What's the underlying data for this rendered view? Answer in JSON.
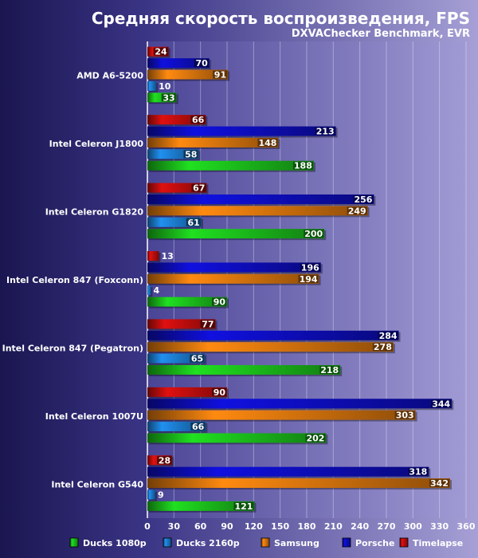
{
  "chart_data": {
    "type": "bar",
    "orientation": "horizontal",
    "title": "Средняя скорость воспроизведения, FPS",
    "subtitle": "DXVAChecker Benchmark, EVR",
    "categories": [
      "AMD A6-5200",
      "Intel Celeron J1800",
      "Intel Celeron G1820",
      "Intel Celeron 847 (Foxconn)",
      "Intel Celeron 847 (Pegatron)",
      "Intel Celeron 1007U",
      "Intel Celeron G540"
    ],
    "series": [
      {
        "name": "Timelapse",
        "color": "#e01010",
        "values": [
          24,
          66,
          67,
          13,
          77,
          90,
          28
        ]
      },
      {
        "name": "Porsche",
        "color": "#1010e0",
        "values": [
          70,
          213,
          256,
          196,
          284,
          344,
          318
        ]
      },
      {
        "name": "Samsung",
        "color": "#ff8a10",
        "values": [
          91,
          148,
          249,
          194,
          278,
          303,
          342
        ]
      },
      {
        "name": "Ducks 2160p",
        "color": "#2090f0",
        "values": [
          10,
          58,
          61,
          4,
          65,
          66,
          9
        ]
      },
      {
        "name": "Ducks 1080p",
        "color": "#20e020",
        "values": [
          33,
          188,
          200,
          90,
          218,
          202,
          121
        ]
      }
    ],
    "legend_order": [
      "Ducks 1080p",
      "Ducks 2160p",
      "Samsung",
      "Porsche",
      "Timelapse"
    ],
    "xlim": [
      0,
      360
    ],
    "xticks": [
      0,
      30,
      60,
      90,
      120,
      150,
      180,
      210,
      240,
      270,
      300,
      330,
      360
    ],
    "grid": true,
    "legend_position": "bottom"
  }
}
